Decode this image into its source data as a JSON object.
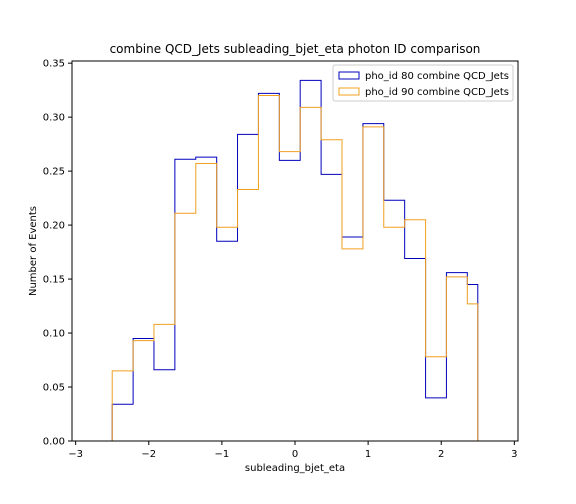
{
  "chart_data": {
    "type": "step-histogram",
    "title": "combine QCD_Jets subleading_bjet_eta photon ID comparison",
    "xlabel": "subleading_bjet_eta",
    "ylabel": "Number of Events",
    "xlim": [
      -3.05,
      3.05
    ],
    "ylim": [
      0,
      0.352
    ],
    "xticks": [
      -3,
      -2,
      -1,
      0,
      1,
      2,
      3
    ],
    "xtick_labels": [
      "−3",
      "−2",
      "−1",
      "0",
      "1",
      "2",
      "3"
    ],
    "yticks": [
      0.0,
      0.05,
      0.1,
      0.15,
      0.2,
      0.25,
      0.3,
      0.35
    ],
    "ytick_labels": [
      "0.00",
      "0.05",
      "0.10",
      "0.15",
      "0.20",
      "0.25",
      "0.30",
      "0.35"
    ],
    "bin_edges": [
      -2.5,
      -2.214,
      -1.929,
      -1.643,
      -1.357,
      -1.071,
      -0.786,
      -0.5,
      -0.214,
      0.071,
      0.357,
      0.643,
      0.929,
      1.214,
      1.5,
      1.786,
      2.071,
      2.357,
      2.5
    ],
    "legend_position": "upper right",
    "series": [
      {
        "name": "pho_id 80 combine QCD_Jets",
        "color": "#0000bb",
        "values": [
          0.034,
          0.095,
          0.066,
          0.261,
          0.263,
          0.185,
          0.284,
          0.322,
          0.26,
          0.334,
          0.247,
          0.189,
          0.294,
          0.223,
          0.169,
          0.04,
          0.156,
          0.145
        ]
      },
      {
        "name": "pho_id 90 combine QCD_Jets",
        "color": "#f0a020",
        "values": [
          0.065,
          0.093,
          0.108,
          0.211,
          0.257,
          0.198,
          0.233,
          0.32,
          0.268,
          0.309,
          0.279,
          0.178,
          0.291,
          0.198,
          0.205,
          0.078,
          0.152,
          0.127
        ]
      }
    ]
  }
}
